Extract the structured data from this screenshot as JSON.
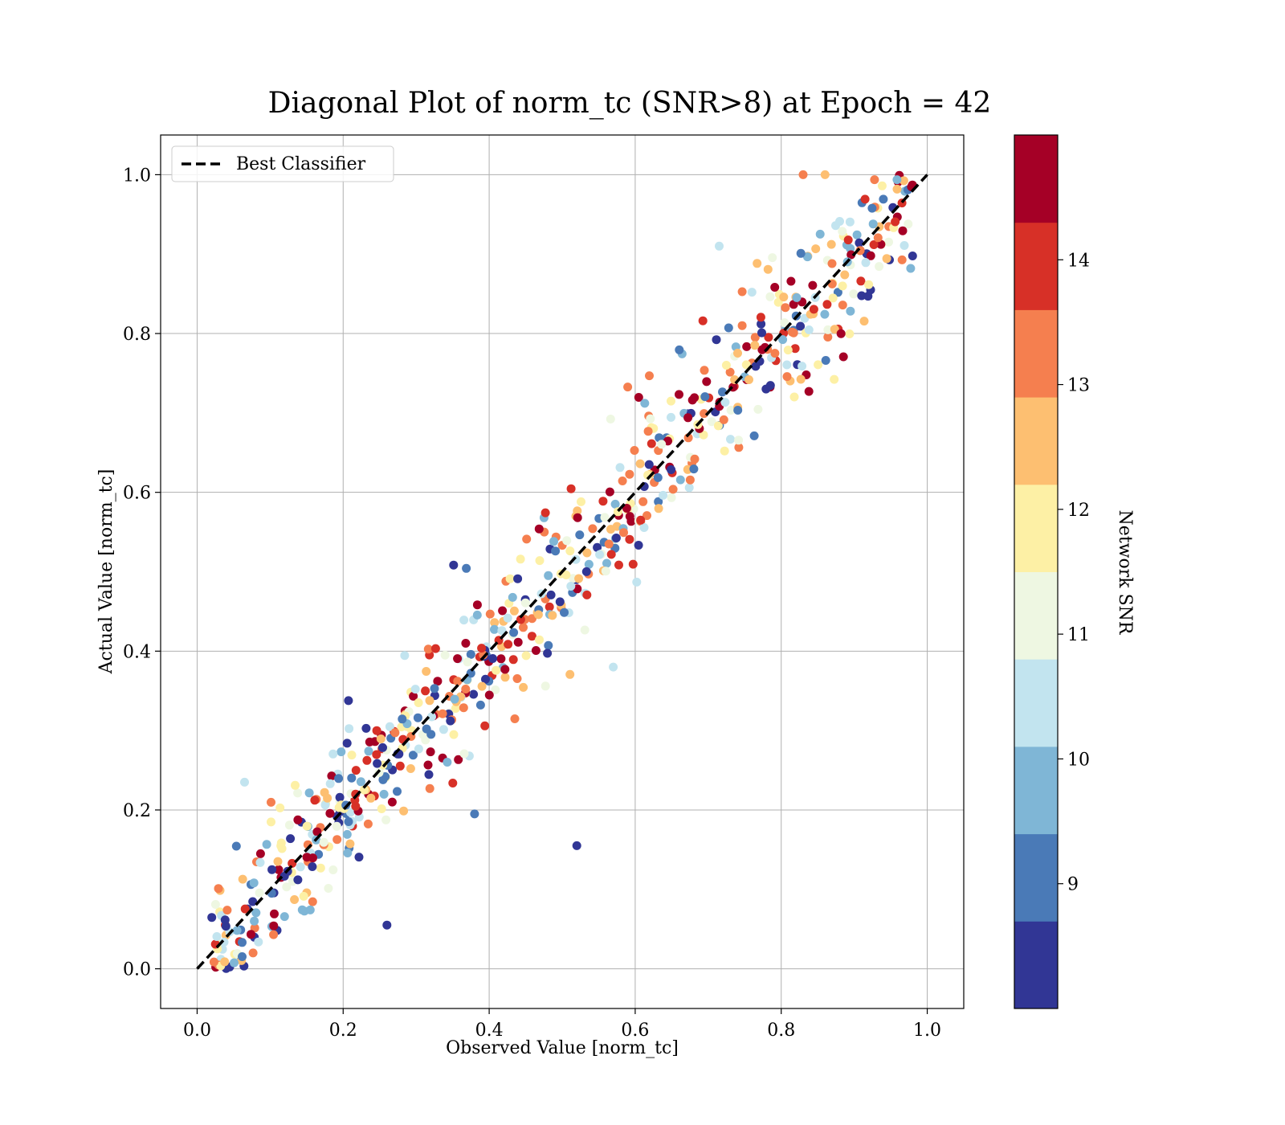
{
  "chart_data": {
    "type": "scatter",
    "title": "Diagonal Plot of norm_tc (SNR>8) at Epoch = 42",
    "xlabel": "Observed Value [norm_tc]",
    "ylabel": "Actual Value [norm_tc]",
    "xlim": [
      -0.05,
      1.05
    ],
    "ylim": [
      -0.05,
      1.05
    ],
    "xticks": [
      "0.0",
      "0.2",
      "0.4",
      "0.6",
      "0.8",
      "1.0"
    ],
    "yticks": [
      "0.0",
      "0.2",
      "0.4",
      "0.6",
      "0.8",
      "1.0"
    ],
    "grid": true,
    "legend": {
      "placement": "top-left",
      "entries": [
        {
          "label": "Best Classifier",
          "style": "black dashed line"
        }
      ]
    },
    "reference_line": {
      "name": "Best Classifier",
      "x": [
        0,
        1
      ],
      "y": [
        0,
        1
      ]
    },
    "colorbar": {
      "label": "Network SNR",
      "range": [
        8,
        15
      ],
      "ticks": [
        "9",
        "10",
        "11",
        "12",
        "13",
        "14"
      ],
      "colormap": [
        "#313695",
        "#4a7ab7",
        "#7fb6d6",
        "#c2e4ef",
        "#eef7e2",
        "#fdf0a5",
        "#fdbf71",
        "#f57f4f",
        "#d73027",
        "#a50026"
      ]
    },
    "point_count": 700,
    "outliers": [
      {
        "x": 0.52,
        "y": 0.155,
        "snr": 8.3
      },
      {
        "x": 0.26,
        "y": 0.055,
        "snr": 8.6
      },
      {
        "x": 0.38,
        "y": 0.195,
        "snr": 9.3
      },
      {
        "x": 0.57,
        "y": 0.38,
        "snr": 10.6
      },
      {
        "x": 0.715,
        "y": 0.91,
        "snr": 10.4
      },
      {
        "x": 0.065,
        "y": 0.235,
        "snr": 10.5
      },
      {
        "x": 0.83,
        "y": 1.0,
        "snr": 13.2
      },
      {
        "x": 0.86,
        "y": 1.0,
        "snr": 12.6
      }
    ]
  }
}
